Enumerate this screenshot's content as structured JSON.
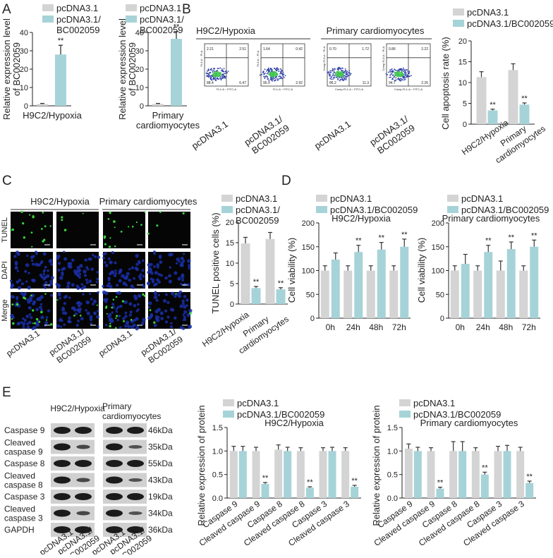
{
  "colors": {
    "pc": "#d4d4d4",
    "bc": "#a6d3d8",
    "err": "#333333",
    "blot_bg": "#d0d0d0",
    "band": "#1b1b1b",
    "fluor_bg": "#050505",
    "dapi": "#1a2fa8",
    "tunel": "#39d43a",
    "flow_low": "#2b3ea8",
    "flow_high": "#3bc24a"
  },
  "panels": {
    "A": "A",
    "B": "B",
    "C": "C",
    "D": "D",
    "E": "E"
  },
  "legend": {
    "pc": "pcDNA3.1",
    "bc": "pcDNA3.1/BC002059",
    "bc_l1": "pcDNA3.1/",
    "bc_l2": "BC002059"
  },
  "stars": "**",
  "labels": {
    "h9c2": "H9C2/Hypoxia",
    "primary": "Primary cardiomyocytes",
    "primary_l1": "Primary",
    "primary_l2": "cardiomyocytes",
    "pc": "pcDNA3.1",
    "bc_l1": "pcDNA3.1/",
    "bc_l2": "BC002059"
  },
  "panelA": {
    "ylabel_l1": "Relative expression level",
    "ylabel_l2": "of BC002059",
    "charts": [
      {
        "xlabel_l1": "H9C2/Hypoxia",
        "xlabel_l2": "",
        "ticks": [
          "0",
          "10",
          "20",
          "30",
          "40"
        ],
        "ymax": 40,
        "values": [
          1,
          28
        ],
        "errs": [
          0.3,
          5
        ]
      },
      {
        "xlabel_l1": "Primary",
        "xlabel_l2": "cardiomyocytes",
        "ticks": [
          "0",
          "10",
          "20",
          "30",
          "40"
        ],
        "ymax": 40,
        "values": [
          1,
          36.5
        ],
        "errs": [
          0.3,
          4
        ]
      }
    ]
  },
  "panelB": {
    "flow": [
      {
        "ylab": "FL3-A :: PI-A",
        "xlab": "FL1-A :: FITC-A",
        "q": [
          "2.21",
          "2.51",
          "88.4",
          "6.47"
        ]
      },
      {
        "ylab": "FL3-A :: PI-A",
        "xlab": "FL1-A :: FITC-A",
        "q": [
          "1.64",
          "0.42",
          "95.0",
          "2.92"
        ]
      },
      {
        "ylab": "Comp-FL3-A :: PI-A",
        "xlab": "Comp-FL1-A :: FITC-A",
        "q": [
          "0.70",
          "1.72",
          "86.2",
          "11.3"
        ]
      },
      {
        "ylab": "Comp-FL3-A :: PI-A",
        "xlab": "Comp-FL1-A :: FITC-A",
        "q": [
          "0.86",
          "2.22",
          "94.7",
          "2.26"
        ]
      }
    ],
    "ylabel": "Cell apoptosis rate (%)",
    "ticks": [
      "0",
      "5",
      "10",
      "15",
      "20"
    ]
  },
  "panelC": {
    "rows": [
      "TUNEL",
      "DAPI",
      "Merge"
    ],
    "ylabel": "TUNEL positive cells (%)",
    "ticks": [
      "0",
      "5",
      "10",
      "15",
      "20"
    ]
  },
  "panelD": {
    "ylabel": "Cell viability (%)",
    "ticks": [
      "0",
      "50",
      "100",
      "150",
      "200"
    ],
    "times": [
      "0h",
      "24h",
      "48h",
      "72h"
    ],
    "titles": [
      "H9C2/Hypoxia",
      "Primary cardiomyocytes"
    ]
  },
  "panelE": {
    "blot_labels": [
      {
        "l1": "Caspase 9",
        "l2": ""
      },
      {
        "l1": "Cleaved",
        "l2": "caspase 9"
      },
      {
        "l1": "Caspase 8",
        "l2": ""
      },
      {
        "l1": "Cleaved",
        "l2": "caspase 8"
      },
      {
        "l1": "Caspase 3",
        "l2": ""
      },
      {
        "l1": "Cleaved",
        "l2": "caspase 3"
      },
      {
        "l1": "GAPDH",
        "l2": ""
      }
    ],
    "kda": [
      "46kDa",
      "35kDa",
      "55kDa",
      "43kDa",
      "19kDa",
      "34kDa",
      "36kDa"
    ],
    "header_left": "H9C2/Hypoxia",
    "header_right_l1": "Primary",
    "header_right_l2": "cardiomyocytes",
    "ylabel": "Relative expression of protein",
    "ticks": [
      "0.0",
      "0.5",
      "1.0",
      "1.5"
    ],
    "titles": [
      "H9C2/Hypoxia",
      "Primary cardiomyocytes"
    ]
  },
  "chart_data": [
    {
      "type": "bar",
      "panel": "A-left",
      "categories": [
        "H9C2/Hypoxia"
      ],
      "ylabel": "Relative expression level of BC002059",
      "ylim": [
        0,
        40
      ],
      "series": [
        {
          "name": "pcDNA3.1",
          "values": [
            1
          ]
        },
        {
          "name": "pcDNA3.1/BC002059",
          "values": [
            28
          ]
        }
      ]
    },
    {
      "type": "bar",
      "panel": "A-right",
      "categories": [
        "Primary cardiomyocytes"
      ],
      "ylabel": "Relative expression level of BC002059",
      "ylim": [
        0,
        40
      ],
      "series": [
        {
          "name": "pcDNA3.1",
          "values": [
            1
          ]
        },
        {
          "name": "pcDNA3.1/BC002059",
          "values": [
            36.5
          ]
        }
      ]
    },
    {
      "type": "bar",
      "panel": "B",
      "categories": [
        "H9C2/Hypoxia",
        "Primary cardiomyocytes"
      ],
      "ylabel": "Cell apoptosis rate (%)",
      "ylim": [
        0,
        20
      ],
      "series": [
        {
          "name": "pcDNA3.1",
          "values": [
            11.3,
            13
          ],
          "errors": [
            1.3,
            1.5
          ]
        },
        {
          "name": "pcDNA3.1/BC002059",
          "values": [
            3.3,
            4.7
          ],
          "errors": [
            0.3,
            0.4
          ]
        }
      ]
    },
    {
      "type": "bar",
      "panel": "C",
      "categories": [
        "H9C2/Hypoxia",
        "Primary cardiomyocytes"
      ],
      "ylabel": "TUNEL positive cells (%)",
      "ylim": [
        0,
        20
      ],
      "series": [
        {
          "name": "pcDNA3.1",
          "values": [
            14.8,
            15.9
          ],
          "errors": [
            1.5,
            1.6
          ]
        },
        {
          "name": "pcDNA3.1/BC002059",
          "values": [
            3.9,
            3.6
          ],
          "errors": [
            0.4,
            0.4
          ]
        }
      ]
    },
    {
      "type": "bar",
      "panel": "D-left",
      "title": "H9C2/Hypoxia",
      "categories": [
        "0h",
        "24h",
        "48h",
        "72h"
      ],
      "ylabel": "Cell viability (%)",
      "ylim": [
        0,
        200
      ],
      "series": [
        {
          "name": "pcDNA3.1",
          "values": [
            100,
            100,
            100,
            100
          ],
          "errors": [
            10,
            10,
            10,
            10
          ]
        },
        {
          "name": "pcDNA3.1/BC002059",
          "values": [
            123,
            139,
            144,
            150
          ],
          "errors": [
            14,
            14,
            15,
            16
          ]
        }
      ]
    },
    {
      "type": "bar",
      "panel": "D-right",
      "title": "Primary cardiomyocytes",
      "categories": [
        "0h",
        "24h",
        "48h",
        "72h"
      ],
      "ylabel": "Cell viability (%)",
      "ylim": [
        0,
        200
      ],
      "series": [
        {
          "name": "pcDNA3.1",
          "values": [
            100,
            100,
            100,
            100
          ],
          "errors": [
            10,
            10,
            20,
            10
          ]
        },
        {
          "name": "pcDNA3.1/BC002059",
          "values": [
            114,
            139,
            145,
            150
          ],
          "errors": [
            20,
            14,
            15,
            14
          ]
        }
      ]
    },
    {
      "type": "bar",
      "panel": "E-left",
      "title": "H9C2/Hypoxia",
      "categories": [
        "Caspase 9",
        "Cleaved caspase 9",
        "Caspase 8",
        "Cleaved caspase 8",
        "Caspase 3",
        "Cleaved caspase 3"
      ],
      "ylabel": "Relative expression of protein",
      "ylim": [
        0,
        1.5
      ],
      "series": [
        {
          "name": "pcDNA3.1",
          "values": [
            1.0,
            1.0,
            1.03,
            1.0,
            1.0,
            1.0
          ],
          "errors": [
            0.1,
            0.08,
            0.1,
            0.07,
            0.07,
            0.07
          ]
        },
        {
          "name": "pcDNA3.1/BC002059",
          "values": [
            1.0,
            0.3,
            1.0,
            0.22,
            1.0,
            0.24
          ],
          "errors": [
            0.1,
            0.03,
            0.08,
            0.02,
            0.08,
            0.03
          ]
        }
      ]
    },
    {
      "type": "bar",
      "panel": "E-right",
      "title": "Primary cardiomyocytes",
      "categories": [
        "Caspase 9",
        "Cleaved caspase 9",
        "Caspase 8",
        "Cleaved caspase 8",
        "Caspase 3",
        "Cleaved caspase 3"
      ],
      "ylabel": "Relative expression of protein",
      "ylim": [
        0,
        1.5
      ],
      "series": [
        {
          "name": "pcDNA3.1",
          "values": [
            1.05,
            1.0,
            1.0,
            1.0,
            1.0,
            1.0
          ],
          "errors": [
            0.1,
            0.07,
            0.2,
            0.07,
            0.1,
            0.08
          ]
        },
        {
          "name": "pcDNA3.1/BC002059",
          "values": [
            1.0,
            0.2,
            1.0,
            0.5,
            1.0,
            0.32
          ],
          "errors": [
            0.08,
            0.03,
            0.2,
            0.05,
            0.12,
            0.04
          ]
        }
      ]
    }
  ]
}
